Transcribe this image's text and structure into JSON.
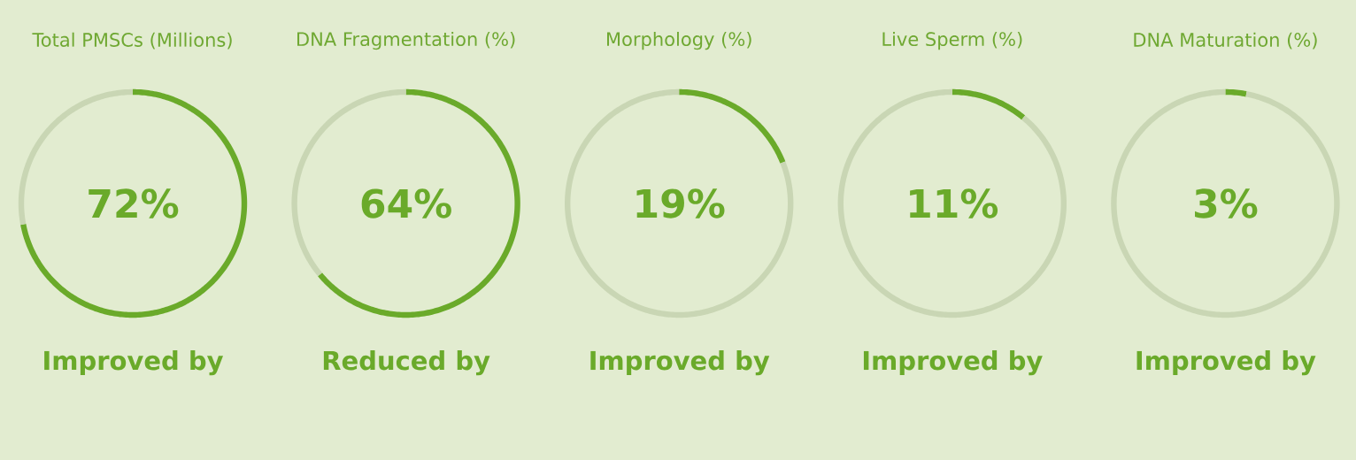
{
  "chart_data": [
    {
      "type": "donut",
      "title": "Total PMSCs (Millions)",
      "categories": [
        null,
        null
      ],
      "values": [
        72,
        28
      ],
      "colors": [
        "#6aaa2a",
        "#c9d6b4"
      ],
      "annotations": [
        "72%",
        "Improved by"
      ]
    },
    {
      "type": "donut",
      "title": "DNA Fragmentation (%)",
      "categories": [
        null,
        null
      ],
      "values": [
        64,
        36
      ],
      "colors": [
        "#6aaa2a",
        "#c9d6b4"
      ],
      "annotations": [
        "64%",
        "Reduced by"
      ]
    },
    {
      "type": "donut",
      "title": "Morphology (%)",
      "categories": [
        null,
        null
      ],
      "values": [
        19,
        81
      ],
      "colors": [
        "#6aaa2a",
        "#c9d6b4"
      ],
      "annotations": [
        "19%",
        "Improved by"
      ]
    },
    {
      "type": "donut",
      "title": "Live Sperm (%)",
      "categories": [
        null,
        null
      ],
      "values": [
        11,
        89
      ],
      "colors": [
        "#6aaa2a",
        "#c9d6b4"
      ],
      "annotations": [
        "11%",
        "Improved by"
      ]
    },
    {
      "type": "donut",
      "title": "DNA Maturation (%)",
      "categories": [
        null,
        null
      ],
      "values": [
        3,
        97
      ],
      "colors": [
        "#6aaa2a",
        "#c9d6b4"
      ],
      "annotations": [
        "3%",
        "Improved by"
      ]
    }
  ]
}
